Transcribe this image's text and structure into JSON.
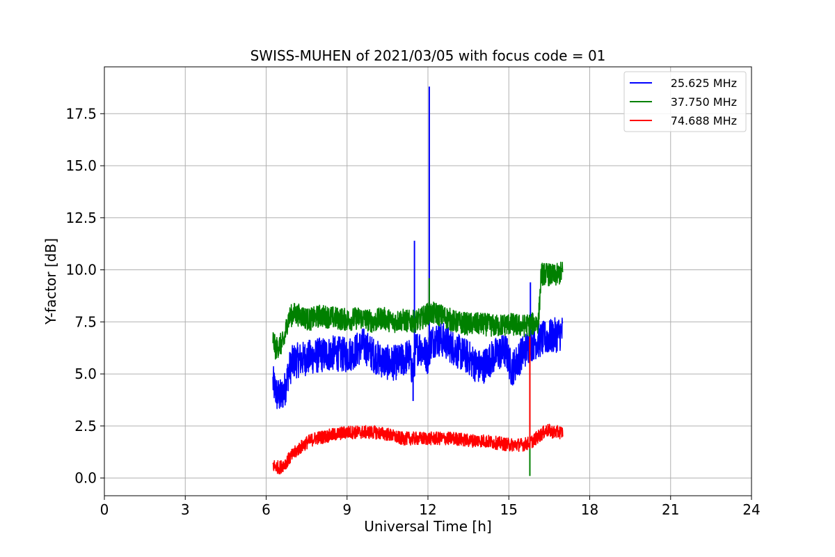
{
  "chart_data": {
    "type": "line",
    "title": "SWISS-MUHEN of 2021/03/05 with focus code = 01",
    "xlabel": "Universal Time [h]",
    "ylabel": "Y-factor [dB]",
    "xlim": [
      0,
      24
    ],
    "ylim": [
      -0.85,
      19.75
    ],
    "xticks": [
      0,
      3,
      6,
      9,
      12,
      15,
      18,
      21,
      24
    ],
    "xtick_labels": [
      "0",
      "3",
      "6",
      "9",
      "12",
      "15",
      "18",
      "21",
      "24"
    ],
    "yticks": [
      0,
      2.5,
      5,
      7.5,
      10,
      12.5,
      15,
      17.5
    ],
    "ytick_labels": [
      "0.0",
      "2.5",
      "5.0",
      "7.5",
      "10.0",
      "12.5",
      "15.0",
      "17.5"
    ],
    "grid": true,
    "legend_position": "top-right",
    "series": [
      {
        "name": "25.625 MHz",
        "color": "#0000ff",
        "points": [
          [
            6.25,
            4.6
          ],
          [
            6.4,
            4.0
          ],
          [
            6.55,
            3.9
          ],
          [
            6.7,
            4.3
          ],
          [
            6.85,
            5.2
          ],
          [
            7.0,
            5.6
          ],
          [
            7.3,
            5.7
          ],
          [
            7.6,
            5.8
          ],
          [
            8.0,
            5.9
          ],
          [
            8.5,
            6.0
          ],
          [
            9.0,
            5.9
          ],
          [
            9.3,
            6.1
          ],
          [
            9.6,
            6.4
          ],
          [
            9.9,
            6.0
          ],
          [
            10.2,
            5.7
          ],
          [
            10.6,
            5.5
          ],
          [
            11.0,
            5.6
          ],
          [
            11.3,
            5.9
          ],
          [
            11.45,
            5.0
          ],
          [
            11.55,
            6.2
          ],
          [
            11.7,
            6.3
          ],
          [
            11.9,
            6.0
          ],
          [
            12.0,
            5.8
          ],
          [
            12.1,
            6.5
          ],
          [
            12.3,
            6.7
          ],
          [
            12.6,
            6.6
          ],
          [
            12.9,
            6.3
          ],
          [
            13.2,
            6.0
          ],
          [
            13.5,
            5.8
          ],
          [
            13.8,
            5.4
          ],
          [
            14.0,
            5.3
          ],
          [
            14.3,
            5.7
          ],
          [
            14.6,
            6.0
          ],
          [
            14.9,
            6.1
          ],
          [
            15.1,
            5.2
          ],
          [
            15.3,
            5.6
          ],
          [
            15.5,
            6.0
          ],
          [
            15.7,
            6.3
          ],
          [
            15.9,
            6.5
          ],
          [
            16.1,
            6.6
          ],
          [
            16.3,
            6.7
          ],
          [
            16.6,
            6.8
          ],
          [
            16.8,
            6.9
          ],
          [
            17.0,
            7.0
          ]
        ],
        "spikes": [
          {
            "x": 11.5,
            "y": 11.4
          },
          {
            "x": 12.05,
            "y": 18.8
          },
          {
            "x": 11.45,
            "y": 3.7
          },
          {
            "x": 15.8,
            "y": 9.4
          }
        ]
      },
      {
        "name": "37.750 MHz",
        "color": "#008000",
        "points": [
          [
            6.25,
            6.7
          ],
          [
            6.35,
            6.2
          ],
          [
            6.5,
            6.4
          ],
          [
            6.65,
            6.5
          ],
          [
            6.8,
            7.6
          ],
          [
            7.0,
            7.9
          ],
          [
            7.3,
            7.8
          ],
          [
            7.6,
            7.6
          ],
          [
            8.0,
            7.8
          ],
          [
            8.5,
            7.7
          ],
          [
            9.0,
            7.6
          ],
          [
            9.5,
            7.7
          ],
          [
            10.0,
            7.5
          ],
          [
            10.3,
            7.7
          ],
          [
            10.7,
            7.5
          ],
          [
            11.0,
            7.6
          ],
          [
            11.4,
            7.5
          ],
          [
            11.7,
            7.6
          ],
          [
            12.0,
            7.9
          ],
          [
            12.3,
            7.9
          ],
          [
            12.7,
            7.7
          ],
          [
            13.0,
            7.5
          ],
          [
            13.5,
            7.4
          ],
          [
            14.0,
            7.4
          ],
          [
            14.5,
            7.3
          ],
          [
            15.0,
            7.4
          ],
          [
            15.5,
            7.3
          ],
          [
            15.9,
            7.4
          ],
          [
            16.1,
            7.5
          ],
          [
            16.2,
            9.8
          ],
          [
            16.4,
            9.8
          ],
          [
            16.7,
            9.7
          ],
          [
            17.0,
            9.9
          ]
        ],
        "spikes": [
          {
            "x": 12.05,
            "y": 9.6
          },
          {
            "x": 15.78,
            "y": 0.1
          }
        ]
      },
      {
        "name": "74.688 MHz",
        "color": "#ff0000",
        "points": [
          [
            6.25,
            0.6
          ],
          [
            6.5,
            0.5
          ],
          [
            6.7,
            0.7
          ],
          [
            6.9,
            1.0
          ],
          [
            7.2,
            1.4
          ],
          [
            7.5,
            1.7
          ],
          [
            7.8,
            1.9
          ],
          [
            8.2,
            2.0
          ],
          [
            8.6,
            2.1
          ],
          [
            9.0,
            2.2
          ],
          [
            9.5,
            2.2
          ],
          [
            10.0,
            2.2
          ],
          [
            10.5,
            2.1
          ],
          [
            11.0,
            1.9
          ],
          [
            11.5,
            1.9
          ],
          [
            12.0,
            1.9
          ],
          [
            12.5,
            1.9
          ],
          [
            13.0,
            1.9
          ],
          [
            13.5,
            1.8
          ],
          [
            14.0,
            1.8
          ],
          [
            14.5,
            1.7
          ],
          [
            15.0,
            1.6
          ],
          [
            15.5,
            1.6
          ],
          [
            15.8,
            1.7
          ],
          [
            16.1,
            2.0
          ],
          [
            16.4,
            2.3
          ],
          [
            16.7,
            2.2
          ],
          [
            17.0,
            2.2
          ]
        ],
        "spikes": [
          {
            "x": 15.78,
            "y": 6.8
          }
        ]
      }
    ]
  }
}
